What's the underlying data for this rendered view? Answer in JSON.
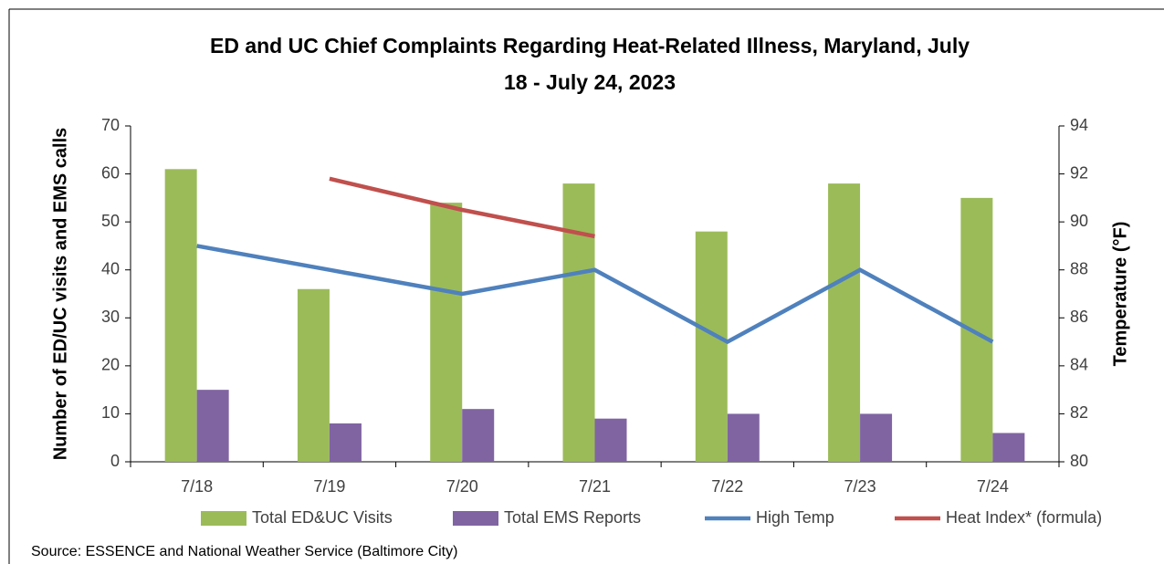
{
  "chart_data": {
    "type": "bar-line",
    "title": [
      "ED and UC Chief Complaints Regarding Heat-Related Illness, Maryland, July",
      "18 - July 24, 2023"
    ],
    "ylabel": "Number of ED/UC visits and EMS calls",
    "y2label": "Temperature (°F)",
    "source": "Source: ESSENCE and National Weather Service (Baltimore City)",
    "categories": [
      "7/18",
      "7/19",
      "7/20",
      "7/21",
      "7/22",
      "7/23",
      "7/24"
    ],
    "series": [
      {
        "name": "Total ED&UC Visits",
        "kind": "bar",
        "color": "#9bbb59",
        "values": [
          61,
          36,
          54,
          58,
          48,
          58,
          55
        ]
      },
      {
        "name": "Total EMS Reports",
        "kind": "bar",
        "color": "#8064a2",
        "values": [
          15,
          8,
          11,
          9,
          10,
          10,
          6
        ]
      },
      {
        "name": "High Temp",
        "kind": "line",
        "axis": "y2",
        "color": "#4f81bd",
        "values": [
          89,
          88,
          87,
          88,
          85,
          88,
          85
        ]
      },
      {
        "name": "Heat Index* (formula)",
        "kind": "line",
        "axis": "y2",
        "color": "#c0504d",
        "values": [
          null,
          91.8,
          90.5,
          89.4,
          null,
          null,
          null
        ]
      }
    ],
    "ylim": [
      0,
      70
    ],
    "yticks": [
      0,
      10,
      20,
      30,
      40,
      50,
      60,
      70
    ],
    "y2lim": [
      80,
      94
    ],
    "y2ticks": [
      80,
      82,
      84,
      86,
      88,
      90,
      92,
      94
    ]
  }
}
